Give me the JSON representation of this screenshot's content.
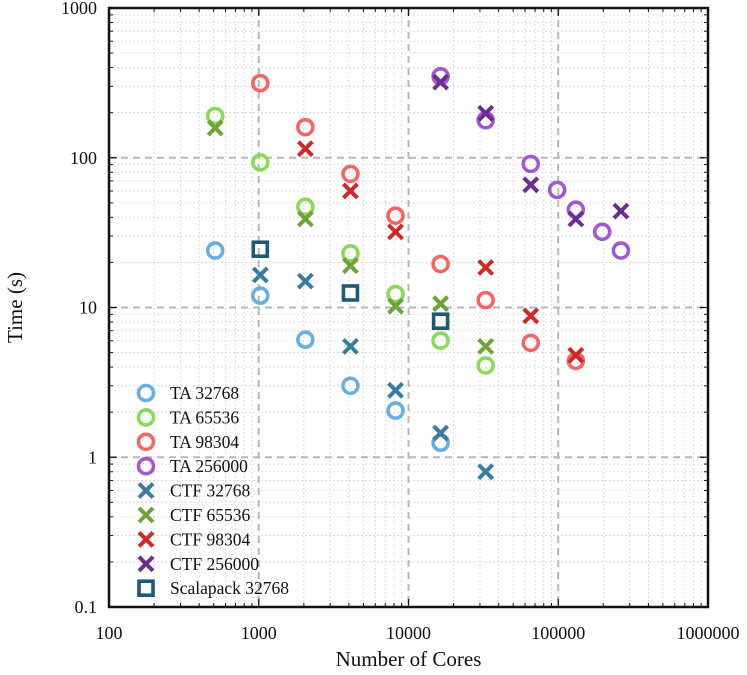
{
  "chart_data": {
    "type": "scatter",
    "title": "",
    "xlabel": "Number of Cores",
    "ylabel": "Time (s)",
    "xscale": "log",
    "yscale": "log",
    "xlim": [
      100,
      1000000
    ],
    "ylim": [
      0.1,
      1000
    ],
    "xticks": [
      "100",
      "1000",
      "10000",
      "100000",
      "1000000"
    ],
    "yticks": [
      "0.1",
      "1",
      "10",
      "100",
      "1000"
    ],
    "grid": true,
    "legend_position": "bottom-left",
    "series": [
      {
        "name": "TA 32768",
        "marker": "circle",
        "color": "#6aaee0",
        "points": [
          [
            512,
            24
          ],
          [
            1024,
            12
          ],
          [
            2048,
            6.1
          ],
          [
            4096,
            3.0
          ],
          [
            8192,
            2.05
          ],
          [
            16384,
            1.25
          ]
        ]
      },
      {
        "name": "TA 65536",
        "marker": "circle",
        "color": "#8bd85a",
        "points": [
          [
            512,
            190
          ],
          [
            1024,
            93
          ],
          [
            2048,
            47
          ],
          [
            4096,
            23
          ],
          [
            8192,
            12.3
          ],
          [
            16384,
            6.0
          ],
          [
            32768,
            4.1
          ]
        ]
      },
      {
        "name": "TA 98304",
        "marker": "circle",
        "color": "#f26666",
        "points": [
          [
            1024,
            315
          ],
          [
            2048,
            160
          ],
          [
            4096,
            78
          ],
          [
            8192,
            41
          ],
          [
            16384,
            19.5
          ],
          [
            32768,
            11.2
          ],
          [
            65536,
            5.8
          ],
          [
            131072,
            4.4
          ]
        ]
      },
      {
        "name": "TA 256000",
        "marker": "circle",
        "color": "#a259cf",
        "points": [
          [
            16384,
            350
          ],
          [
            32768,
            178
          ],
          [
            65536,
            91
          ],
          [
            98304,
            61
          ],
          [
            131072,
            45
          ],
          [
            196608,
            32
          ],
          [
            262144,
            24
          ]
        ]
      },
      {
        "name": "CTF 32768",
        "marker": "x",
        "color": "#3a7d9e",
        "points": [
          [
            1024,
            16.5
          ],
          [
            2048,
            15
          ],
          [
            4096,
            5.5
          ],
          [
            8192,
            2.8
          ],
          [
            16384,
            1.45
          ],
          [
            32768,
            0.8
          ]
        ]
      },
      {
        "name": "CTF 65536",
        "marker": "x",
        "color": "#6da33a",
        "points": [
          [
            512,
            158
          ],
          [
            2048,
            39
          ],
          [
            4096,
            19
          ],
          [
            8192,
            10.2
          ],
          [
            16384,
            10.6
          ],
          [
            32768,
            5.5
          ]
        ]
      },
      {
        "name": "CTF 98304",
        "marker": "x",
        "color": "#cc2a2a",
        "points": [
          [
            2048,
            115
          ],
          [
            4096,
            60
          ],
          [
            8192,
            32
          ],
          [
            32768,
            18.5
          ],
          [
            65536,
            8.8
          ],
          [
            131072,
            4.8
          ]
        ]
      },
      {
        "name": "CTF 256000",
        "marker": "x",
        "color": "#6b2d8f",
        "points": [
          [
            16384,
            320
          ],
          [
            32768,
            198
          ],
          [
            65536,
            66
          ],
          [
            131072,
            39
          ],
          [
            262144,
            44
          ]
        ]
      },
      {
        "name": "Scalapack 32768",
        "marker": "square",
        "color": "#1d5a7a",
        "points": [
          [
            1024,
            24.5
          ],
          [
            4096,
            12.5
          ],
          [
            16384,
            8.1
          ]
        ]
      }
    ]
  }
}
